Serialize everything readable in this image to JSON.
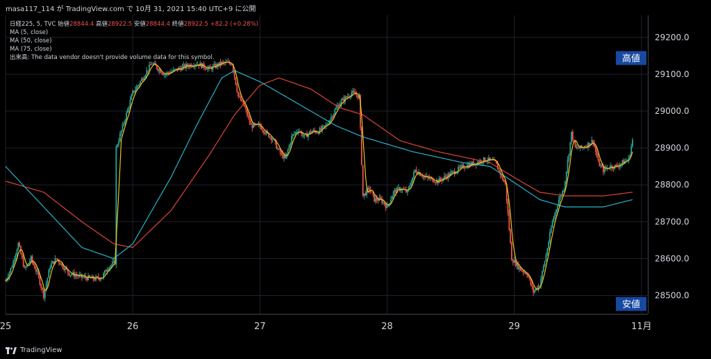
{
  "header": {
    "text": "masa117_114 が TradingView.com で 10月 31, 2021 15:40 UTC+9 に公開"
  },
  "legend": {
    "symbol": "日経225, 5, TVC",
    "open_label": "始値",
    "open_value": "28844.4",
    "high_label": "高値",
    "high_value": "28922.5",
    "low_label": "安値",
    "low_value": "28844.4",
    "close_label": "終値",
    "close_value": "28922.5",
    "change": "+82.2 (+0.28%)",
    "ma_lines": [
      "MA (5, close)",
      "MA (50, close)",
      "MA (75, close)"
    ],
    "volume_note": "出来高: The data vendor doesn't provide volume data for this symbol."
  },
  "footer": {
    "brand": "TradingView",
    "logo_icon": "tradingview-logo-icon"
  },
  "colors": {
    "background": "#000000",
    "grid": "#1e222d",
    "up_candle": "#26a69a",
    "down_candle": "#ef5350",
    "ma5": "#f0c419",
    "ma50": "#26b5c9",
    "ma75": "#e0443c",
    "axis_text": "#d1d4dc",
    "label_box": "#1848a0"
  },
  "chart_data": {
    "type": "candlestick",
    "ylim": [
      28450,
      29260
    ],
    "y_ticks": [
      "29200.0",
      "29100.0",
      "29000.0",
      "28900.0",
      "28800.0",
      "28700.0",
      "28600.0",
      "28500.0"
    ],
    "y_tick_values": [
      29200,
      29100,
      29000,
      28900,
      28800,
      28700,
      28600,
      28500
    ],
    "x_ticks": [
      "25",
      "26",
      "27",
      "28",
      "29",
      "11月"
    ],
    "x_tick_pos": [
      0,
      100,
      200,
      300,
      400,
      500
    ],
    "x_range": [
      0,
      505
    ],
    "high_marker": {
      "label": "高値",
      "value": 29144
    },
    "low_marker": {
      "label": "安値",
      "value": 28477
    },
    "price_close_anchors": [
      [
        0,
        28540
      ],
      [
        5,
        28580
      ],
      [
        10,
        28640
      ],
      [
        15,
        28570
      ],
      [
        20,
        28600
      ],
      [
        25,
        28560
      ],
      [
        30,
        28500
      ],
      [
        35,
        28580
      ],
      [
        40,
        28600
      ],
      [
        50,
        28560
      ],
      [
        60,
        28550
      ],
      [
        70,
        28545
      ],
      [
        76,
        28550
      ],
      [
        80,
        28575
      ],
      [
        86,
        28590
      ],
      [
        87,
        28900
      ],
      [
        100,
        29050
      ],
      [
        106,
        29080
      ],
      [
        115,
        29130
      ],
      [
        125,
        29100
      ],
      [
        140,
        29120
      ],
      [
        150,
        29130
      ],
      [
        160,
        29115
      ],
      [
        170,
        29130
      ],
      [
        178,
        29130
      ],
      [
        183,
        29040
      ],
      [
        188,
        29010
      ],
      [
        193,
        28960
      ],
      [
        200,
        28960
      ],
      [
        205,
        28940
      ],
      [
        210,
        28925
      ],
      [
        215,
        28890
      ],
      [
        220,
        28870
      ],
      [
        225,
        28930
      ],
      [
        230,
        28950
      ],
      [
        235,
        28930
      ],
      [
        240,
        28945
      ],
      [
        246,
        28945
      ],
      [
        252,
        28960
      ],
      [
        262,
        29020
      ],
      [
        272,
        29050
      ],
      [
        278,
        29040
      ],
      [
        281,
        28770
      ],
      [
        286,
        28790
      ],
      [
        290,
        28760
      ],
      [
        295,
        28760
      ],
      [
        300,
        28740
      ],
      [
        305,
        28780
      ],
      [
        310,
        28790
      ],
      [
        316,
        28780
      ],
      [
        322,
        28840
      ],
      [
        330,
        28820
      ],
      [
        340,
        28810
      ],
      [
        350,
        28830
      ],
      [
        360,
        28850
      ],
      [
        370,
        28860
      ],
      [
        378,
        28870
      ],
      [
        385,
        28860
      ],
      [
        393,
        28800
      ],
      [
        398,
        28600
      ],
      [
        405,
        28570
      ],
      [
        410,
        28560
      ],
      [
        415,
        28510
      ],
      [
        420,
        28530
      ],
      [
        425,
        28610
      ],
      [
        430,
        28700
      ],
      [
        435,
        28760
      ],
      [
        439,
        28790
      ],
      [
        445,
        28940
      ],
      [
        448,
        28900
      ],
      [
        453,
        28900
      ],
      [
        458,
        28910
      ],
      [
        462,
        28920
      ],
      [
        466,
        28860
      ],
      [
        470,
        28840
      ],
      [
        475,
        28850
      ],
      [
        480,
        28850
      ],
      [
        485,
        28860
      ],
      [
        490,
        28870
      ],
      [
        493,
        28922
      ]
    ],
    "ma50_anchors": [
      [
        0,
        28850
      ],
      [
        30,
        28740
      ],
      [
        60,
        28630
      ],
      [
        85,
        28600
      ],
      [
        100,
        28640
      ],
      [
        130,
        28820
      ],
      [
        150,
        28960
      ],
      [
        170,
        29090
      ],
      [
        180,
        29110
      ],
      [
        200,
        29080
      ],
      [
        230,
        29020
      ],
      [
        260,
        28960
      ],
      [
        281,
        28930
      ],
      [
        320,
        28890
      ],
      [
        360,
        28860
      ],
      [
        381,
        28850
      ],
      [
        420,
        28760
      ],
      [
        440,
        28740
      ],
      [
        470,
        28740
      ],
      [
        493,
        28760
      ]
    ],
    "ma75_anchors": [
      [
        0,
        28810
      ],
      [
        30,
        28780
      ],
      [
        60,
        28700
      ],
      [
        85,
        28640
      ],
      [
        100,
        28630
      ],
      [
        130,
        28730
      ],
      [
        160,
        28880
      ],
      [
        180,
        28990
      ],
      [
        200,
        29070
      ],
      [
        215,
        29090
      ],
      [
        240,
        29060
      ],
      [
        262,
        29010
      ],
      [
        281,
        28990
      ],
      [
        310,
        28920
      ],
      [
        340,
        28890
      ],
      [
        381,
        28860
      ],
      [
        400,
        28820
      ],
      [
        420,
        28780
      ],
      [
        440,
        28770
      ],
      [
        470,
        28770
      ],
      [
        493,
        28780
      ]
    ]
  }
}
